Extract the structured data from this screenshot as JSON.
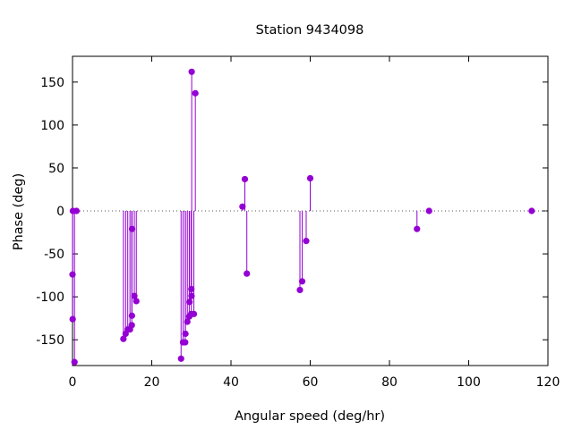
{
  "chart_data": {
    "type": "scatter",
    "style": "impulses-with-points",
    "title": "Station 9434098",
    "xlabel": "Angular speed (deg/hr)",
    "ylabel": "Phase (deg)",
    "xlim": [
      0,
      120
    ],
    "ylim": [
      -180,
      180
    ],
    "xticks": [
      0,
      20,
      40,
      60,
      80,
      100,
      120
    ],
    "yticks": [
      -150,
      -100,
      -50,
      0,
      50,
      100,
      150
    ],
    "xtick_labels": [
      "0",
      "20",
      "40",
      "60",
      "80",
      "100",
      "120"
    ],
    "ytick_labels": [
      "-150",
      "-100",
      "-50",
      "0",
      "50",
      "100",
      "150"
    ],
    "zero_line": true,
    "grid": false,
    "color": "#9400d3",
    "series": [
      {
        "points": [
          [
            0.0,
            -74
          ],
          [
            0.04,
            -126
          ],
          [
            0.08,
            0
          ],
          [
            0.5,
            -176
          ],
          [
            1.0,
            0
          ],
          [
            12.85,
            -149
          ],
          [
            13.4,
            -143
          ],
          [
            13.94,
            -138
          ],
          [
            14.5,
            -138
          ],
          [
            14.96,
            -133
          ],
          [
            15.0,
            -122
          ],
          [
            15.04,
            -21
          ],
          [
            15.6,
            -99
          ],
          [
            16.1,
            -105
          ],
          [
            27.4,
            -172
          ],
          [
            27.9,
            -153
          ],
          [
            28.44,
            -153
          ],
          [
            28.5,
            -143
          ],
          [
            28.98,
            -129
          ],
          [
            29.46,
            -123
          ],
          [
            29.53,
            -106
          ],
          [
            29.96,
            -120
          ],
          [
            30.0,
            -91
          ],
          [
            30.04,
            -99
          ],
          [
            30.08,
            162
          ],
          [
            30.63,
            -120
          ],
          [
            31.0,
            137
          ],
          [
            42.9,
            5
          ],
          [
            43.5,
            37
          ],
          [
            44.0,
            -73
          ],
          [
            57.4,
            -92
          ],
          [
            57.97,
            -82
          ],
          [
            58.98,
            -35
          ],
          [
            60.0,
            38
          ],
          [
            86.95,
            -21
          ],
          [
            90.0,
            0
          ],
          [
            115.9,
            0
          ]
        ]
      }
    ]
  }
}
